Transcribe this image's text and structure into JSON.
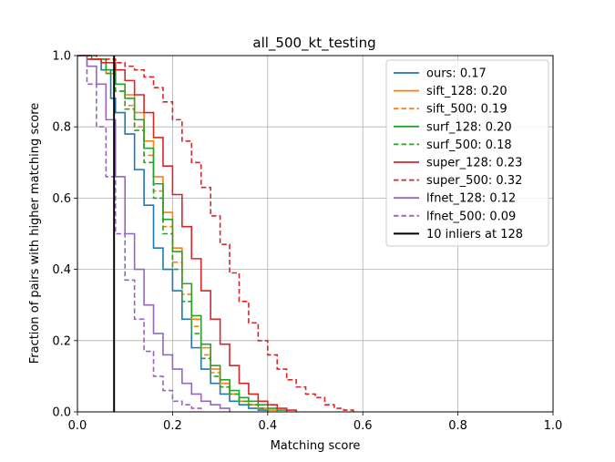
{
  "chart_data": {
    "type": "line",
    "title": "all_500_kt_testing",
    "xlabel": "Matching score",
    "ylabel": "Fraction of pairs with higher matching score",
    "xlim": [
      0,
      1
    ],
    "ylim": [
      0,
      1
    ],
    "xticks": [
      "0.0",
      "0.2",
      "0.4",
      "0.6",
      "0.8",
      "1.0"
    ],
    "yticks": [
      "0.0",
      "0.2",
      "0.4",
      "0.6",
      "0.8",
      "1.0"
    ],
    "grid": true,
    "legend_position": "top-right",
    "series": [
      {
        "name": "ours: 0.17",
        "color": "#1f77b4",
        "dash": "solid",
        "x": [
          0.0,
          0.02,
          0.05,
          0.07,
          0.08,
          0.1,
          0.12,
          0.14,
          0.16,
          0.18,
          0.2,
          0.22,
          0.24,
          0.26,
          0.28,
          0.3,
          0.32,
          0.34,
          0.36,
          0.38,
          0.4
        ],
        "y": [
          1.0,
          0.99,
          0.96,
          0.88,
          0.84,
          0.78,
          0.68,
          0.58,
          0.46,
          0.4,
          0.34,
          0.26,
          0.18,
          0.12,
          0.08,
          0.05,
          0.03,
          0.02,
          0.01,
          0.005,
          0.0
        ]
      },
      {
        "name": "sift_128: 0.20",
        "color": "#ff7f0e",
        "dash": "solid",
        "x": [
          0.0,
          0.03,
          0.06,
          0.08,
          0.1,
          0.12,
          0.14,
          0.16,
          0.18,
          0.2,
          0.22,
          0.24,
          0.26,
          0.28,
          0.3,
          0.32,
          0.34,
          0.36,
          0.38,
          0.4,
          0.42
        ],
        "y": [
          1.0,
          0.99,
          0.95,
          0.92,
          0.89,
          0.84,
          0.76,
          0.66,
          0.56,
          0.46,
          0.36,
          0.26,
          0.18,
          0.12,
          0.08,
          0.05,
          0.03,
          0.02,
          0.01,
          0.005,
          0.0
        ]
      },
      {
        "name": "sift_500: 0.19",
        "color": "#ff7f0e",
        "dash": "dashed",
        "x": [
          0.0,
          0.03,
          0.06,
          0.08,
          0.1,
          0.12,
          0.14,
          0.16,
          0.18,
          0.2,
          0.22,
          0.24,
          0.26,
          0.28,
          0.3,
          0.32,
          0.34,
          0.36,
          0.38,
          0.4
        ],
        "y": [
          1.0,
          0.99,
          0.95,
          0.9,
          0.86,
          0.8,
          0.72,
          0.62,
          0.52,
          0.42,
          0.33,
          0.24,
          0.16,
          0.11,
          0.07,
          0.05,
          0.03,
          0.02,
          0.01,
          0.0
        ]
      },
      {
        "name": "surf_128: 0.20",
        "color": "#2ca02c",
        "dash": "solid",
        "x": [
          0.0,
          0.03,
          0.06,
          0.08,
          0.1,
          0.12,
          0.14,
          0.16,
          0.18,
          0.2,
          0.22,
          0.24,
          0.26,
          0.28,
          0.3,
          0.32,
          0.34,
          0.36,
          0.38,
          0.4,
          0.42,
          0.44
        ],
        "y": [
          1.0,
          0.99,
          0.96,
          0.92,
          0.88,
          0.82,
          0.74,
          0.64,
          0.54,
          0.45,
          0.36,
          0.27,
          0.19,
          0.13,
          0.09,
          0.06,
          0.04,
          0.03,
          0.02,
          0.01,
          0.005,
          0.0
        ]
      },
      {
        "name": "surf_500: 0.18",
        "color": "#2ca02c",
        "dash": "dashed",
        "x": [
          0.0,
          0.03,
          0.06,
          0.08,
          0.1,
          0.12,
          0.14,
          0.16,
          0.18,
          0.2,
          0.22,
          0.24,
          0.26,
          0.28,
          0.3,
          0.32,
          0.34,
          0.36,
          0.38,
          0.4
        ],
        "y": [
          1.0,
          0.99,
          0.95,
          0.9,
          0.85,
          0.79,
          0.7,
          0.6,
          0.5,
          0.4,
          0.31,
          0.22,
          0.15,
          0.1,
          0.07,
          0.05,
          0.03,
          0.02,
          0.01,
          0.0
        ]
      },
      {
        "name": "super_128: 0.23",
        "color": "#d62728",
        "dash": "solid",
        "x": [
          0.0,
          0.02,
          0.05,
          0.08,
          0.1,
          0.12,
          0.14,
          0.16,
          0.18,
          0.2,
          0.22,
          0.24,
          0.26,
          0.28,
          0.3,
          0.32,
          0.34,
          0.36,
          0.38,
          0.4,
          0.42,
          0.44,
          0.46
        ],
        "y": [
          1.0,
          0.99,
          0.98,
          0.96,
          0.93,
          0.89,
          0.84,
          0.77,
          0.69,
          0.61,
          0.52,
          0.43,
          0.34,
          0.26,
          0.19,
          0.13,
          0.08,
          0.05,
          0.03,
          0.02,
          0.01,
          0.005,
          0.0
        ]
      },
      {
        "name": "super_500: 0.32",
        "color": "#d62728",
        "dash": "dashed",
        "x": [
          0.0,
          0.04,
          0.08,
          0.1,
          0.12,
          0.14,
          0.16,
          0.18,
          0.2,
          0.22,
          0.24,
          0.26,
          0.28,
          0.3,
          0.32,
          0.34,
          0.36,
          0.38,
          0.4,
          0.42,
          0.44,
          0.46,
          0.48,
          0.5,
          0.52,
          0.54,
          0.56,
          0.58
        ],
        "y": [
          1.0,
          0.99,
          0.98,
          0.97,
          0.96,
          0.94,
          0.91,
          0.87,
          0.82,
          0.76,
          0.7,
          0.63,
          0.55,
          0.47,
          0.39,
          0.31,
          0.25,
          0.2,
          0.16,
          0.12,
          0.09,
          0.07,
          0.05,
          0.04,
          0.02,
          0.01,
          0.005,
          0.0
        ]
      },
      {
        "name": "lfnet_128: 0.12",
        "color": "#9467bd",
        "dash": "solid",
        "x": [
          0.0,
          0.02,
          0.04,
          0.06,
          0.08,
          0.1,
          0.12,
          0.14,
          0.16,
          0.18,
          0.2,
          0.22,
          0.24,
          0.26,
          0.28,
          0.3,
          0.32
        ],
        "y": [
          1.0,
          0.97,
          0.92,
          0.82,
          0.66,
          0.5,
          0.4,
          0.3,
          0.22,
          0.16,
          0.12,
          0.08,
          0.05,
          0.03,
          0.02,
          0.01,
          0.0
        ]
      },
      {
        "name": "lfnet_500: 0.09",
        "color": "#9467bd",
        "dash": "dashed",
        "x": [
          0.0,
          0.02,
          0.04,
          0.06,
          0.08,
          0.1,
          0.12,
          0.14,
          0.16,
          0.18,
          0.2,
          0.22,
          0.24,
          0.26
        ],
        "y": [
          1.0,
          0.92,
          0.8,
          0.66,
          0.5,
          0.37,
          0.26,
          0.17,
          0.1,
          0.06,
          0.03,
          0.02,
          0.01,
          0.0
        ]
      },
      {
        "name": "10 inliers at 128",
        "color": "#000000",
        "dash": "solid",
        "x": [
          0.077,
          0.077
        ],
        "y": [
          0.0,
          1.0
        ]
      }
    ]
  }
}
